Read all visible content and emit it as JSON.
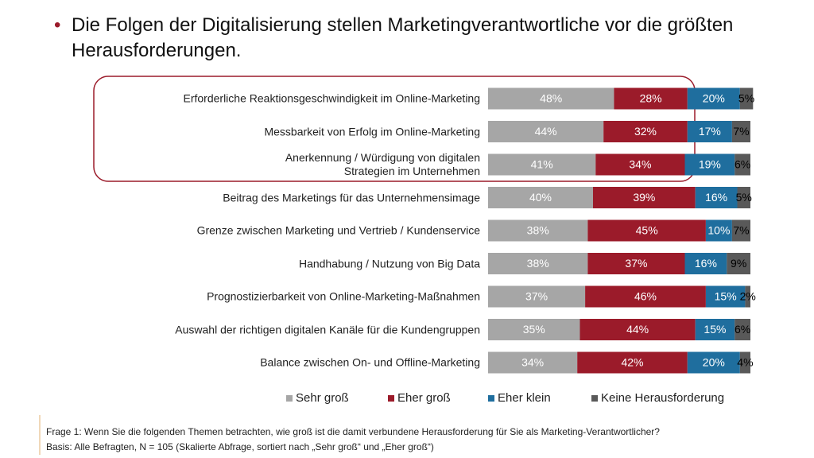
{
  "chart_data": {
    "type": "stacked-bar",
    "title": "Die Folgen der Digitalisierung stellen Marketingverantwortliche vor die größten Herausforderungen.",
    "categories": [
      "Erforderliche Reaktionsgeschwindigkeit im Online-Marketing",
      "Messbarkeit von Erfolg im Online-Marketing",
      "Anerkennung / Würdigung von digitalen\nStrategien im Unternehmen",
      "Beitrag des Marketings für das Unternehmensimage",
      "Grenze zwischen Marketing und Vertrieb / Kundenservice",
      "Handhabung / Nutzung von Big Data",
      "Prognostizierbarkeit von Online-Marketing-Maßnahmen",
      "Auswahl der richtigen digitalen Kanäle für die Kundengruppen",
      "Balance zwischen On- und Offline-Marketing"
    ],
    "series": [
      {
        "name": "Sehr groß",
        "color": "#a6a6a6",
        "values": [
          48,
          44,
          41,
          40,
          38,
          38,
          37,
          35,
          34
        ],
        "value_labels": [
          "48%",
          "44%",
          "41%",
          "40%",
          "38%",
          "38%",
          "37%",
          "35%",
          "34%"
        ]
      },
      {
        "name": "Eher groß",
        "color": "#9b1b2a",
        "values": [
          28,
          32,
          34,
          39,
          45,
          37,
          46,
          44,
          42
        ],
        "value_labels": [
          "28%",
          "32%",
          "34%",
          "39%",
          "45%",
          "37%",
          "46%",
          "44%",
          "42%"
        ]
      },
      {
        "name": "Eher klein",
        "color": "#1f6e9e",
        "values": [
          20,
          17,
          19,
          16,
          10,
          16,
          15,
          15,
          20
        ],
        "value_labels": [
          "20%",
          "17%",
          "19%",
          "16%",
          "10%",
          "16%",
          "15%",
          "15%",
          "20%"
        ]
      },
      {
        "name": "Keine Herausforderung",
        "color": "#595959",
        "values": [
          5,
          7,
          6,
          5,
          7,
          9,
          2,
          6,
          4
        ],
        "value_labels": [
          "5%",
          "7%",
          "6%",
          "5%",
          "7%",
          "9%",
          "2%",
          "6%",
          "4%"
        ]
      }
    ],
    "footnotes": [
      "Frage 1: Wenn Sie die folgenden Themen betrachten, wie groß ist die damit verbundene Herausforderung für Sie als Marketing-Verantwortlicher?",
      "Basis: Alle Befragten, N = 105 (Skalierte Abfrage, sortiert nach „Sehr groß“ und „Eher groß“)"
    ]
  }
}
